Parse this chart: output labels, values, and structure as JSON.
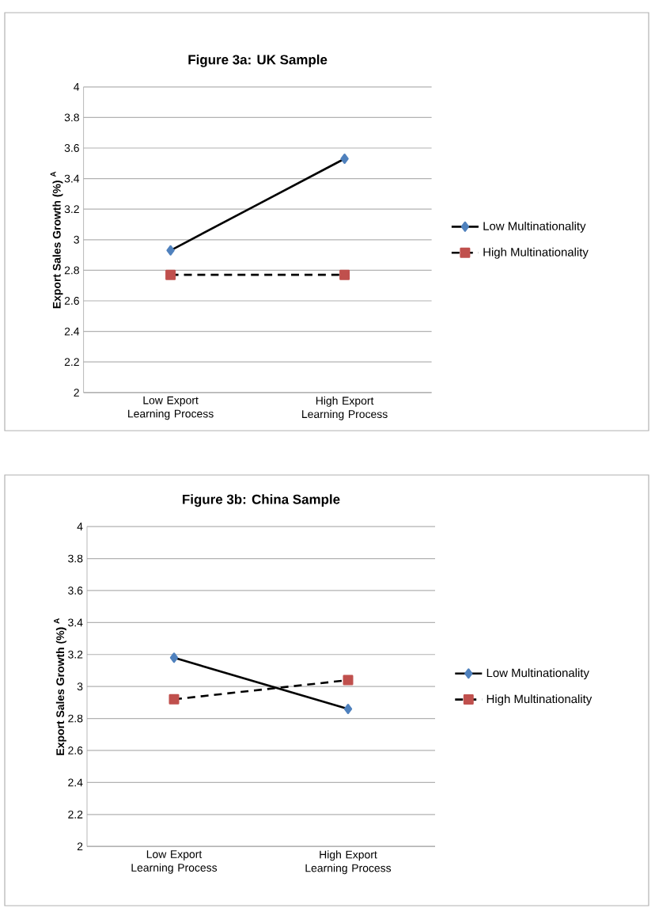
{
  "chart_data": [
    {
      "type": "line",
      "title": "Figure 3a: UK Sample",
      "ylabel": "Export Sales Growth (%) $^{A}$",
      "categories": [
        "Low Export Learning Process",
        "High Export Learning Process"
      ],
      "series": [
        {
          "name": "Low Multinationality",
          "color": "#4f81bd",
          "marker": "diamond",
          "line_style": "solid",
          "values": [
            2.93,
            3.53
          ]
        },
        {
          "name": "High Multinationality",
          "color": "#c0504d",
          "marker": "square",
          "line_style": "dashed",
          "values": [
            2.77,
            2.77
          ]
        }
      ],
      "ylim": [
        2,
        4
      ],
      "yticks": [
        2,
        2.2,
        2.4,
        2.6,
        2.8,
        3,
        3.2,
        3.4,
        3.6,
        3.8,
        4
      ],
      "grid": "y",
      "legend": "right"
    },
    {
      "type": "line",
      "title": "Figure 3b: China Sample",
      "ylabel": "Export Sales Growth (%) $^{A}$",
      "categories": [
        "Low Export Learning Process",
        "High Export Learning Process"
      ],
      "series": [
        {
          "name": "Low Multinationality",
          "color": "#4f81bd",
          "marker": "diamond",
          "line_style": "solid",
          "values": [
            3.18,
            2.86
          ]
        },
        {
          "name": "High Multinationality",
          "color": "#c0504d",
          "marker": "square",
          "line_style": "dashed",
          "values": [
            2.92,
            3.04
          ]
        }
      ],
      "ylim": [
        2,
        4
      ],
      "yticks": [
        2,
        2.2,
        2.4,
        2.6,
        2.8,
        3,
        3.2,
        3.4,
        3.6,
        3.8,
        4
      ],
      "grid": "y",
      "legend": "right"
    }
  ]
}
